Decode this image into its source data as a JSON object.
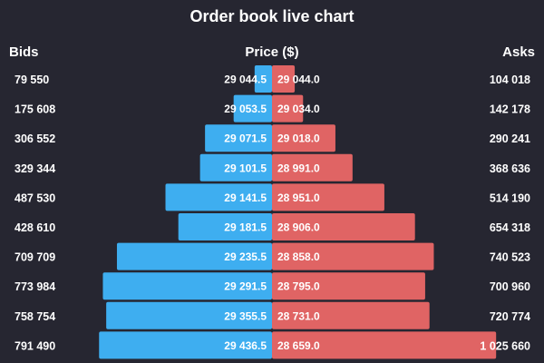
{
  "chart_data": {
    "type": "bar",
    "title": "Order book live chart",
    "headers": {
      "bids": "Bids",
      "price": "Price ($)",
      "asks": "Asks"
    },
    "bids": [
      {
        "price": "29 044.5",
        "quantity": "79 550",
        "value": 79550
      },
      {
        "price": "29 053.5",
        "quantity": "175 608",
        "value": 175608
      },
      {
        "price": "29 071.5",
        "quantity": "306 552",
        "value": 306552
      },
      {
        "price": "29 101.5",
        "quantity": "329 344",
        "value": 329344
      },
      {
        "price": "29 141.5",
        "quantity": "487 530",
        "value": 487530
      },
      {
        "price": "29 181.5",
        "quantity": "428 610",
        "value": 428610
      },
      {
        "price": "29 235.5",
        "quantity": "709 709",
        "value": 709709
      },
      {
        "price": "29 291.5",
        "quantity": "773 984",
        "value": 773984
      },
      {
        "price": "29 355.5",
        "quantity": "758 754",
        "value": 758754
      },
      {
        "price": "29 436.5",
        "quantity": "791 490",
        "value": 791490
      }
    ],
    "asks": [
      {
        "price": "29 044.0",
        "quantity": "104 018",
        "value": 104018
      },
      {
        "price": "29 034.0",
        "quantity": "142 178",
        "value": 142178
      },
      {
        "price": "29 018.0",
        "quantity": "290 241",
        "value": 290241
      },
      {
        "price": "28 991.0",
        "quantity": "368 636",
        "value": 368636
      },
      {
        "price": "28 951.0",
        "quantity": "514 190",
        "value": 514190
      },
      {
        "price": "28 906.0",
        "quantity": "654 318",
        "value": 654318
      },
      {
        "price": "28 858.0",
        "quantity": "740 523",
        "value": 740523
      },
      {
        "price": "28 795.0",
        "quantity": "700 960",
        "value": 700960
      },
      {
        "price": "28 731.0",
        "quantity": "720 774",
        "value": 720774
      },
      {
        "price": "28 659.0",
        "quantity": "1 025 660",
        "value": 1025660
      }
    ],
    "colors": {
      "background": "#262631",
      "bids": "#3eaef0",
      "asks": "#e06464",
      "text": "#ffffff"
    }
  }
}
